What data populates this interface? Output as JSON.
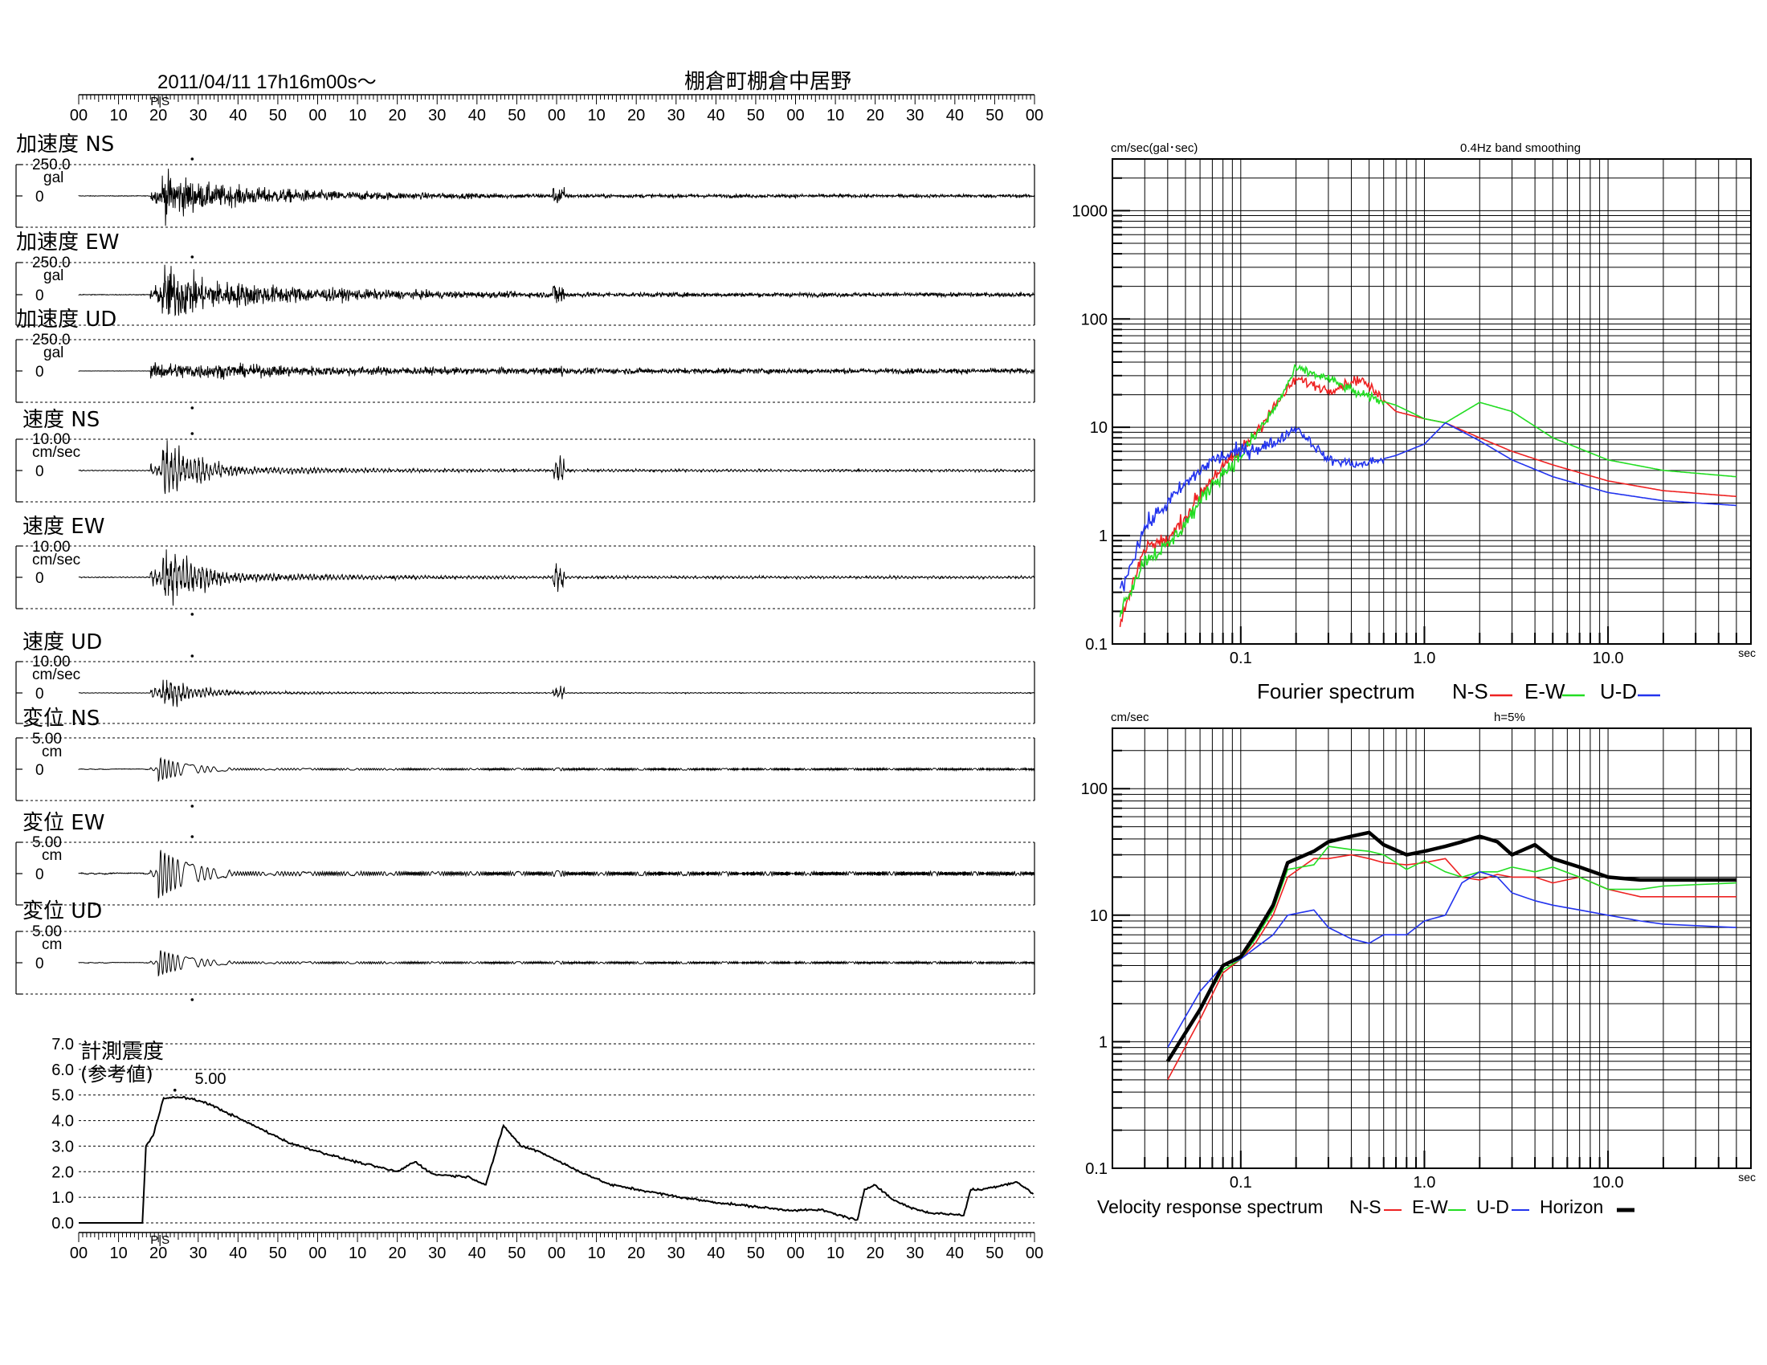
{
  "header": {
    "datetime": "2011/04/11  17h16m00s～",
    "station": "棚倉町棚倉中居野",
    "time_labels": [
      "00",
      "10",
      "20",
      "30",
      "40",
      "50",
      "00",
      "10",
      "20",
      "30",
      "40",
      "50",
      "00",
      "10",
      "20",
      "30",
      "40",
      "50",
      "00",
      "10",
      "20",
      "30",
      "40",
      "50",
      "00"
    ],
    "ps_marker": "P|S",
    "ps_color": "#2222cc"
  },
  "waveforms": [
    {
      "label": "加速度 NS",
      "scale": "250.0",
      "unit": "gal",
      "zero": "0"
    },
    {
      "label": "加速度 EW",
      "scale": "250.0",
      "unit": "gal",
      "zero": "0"
    },
    {
      "label": "加速度 UD",
      "scale": "250.0",
      "unit": "gal",
      "zero": "0"
    },
    {
      "label": "速度 NS",
      "scale": "10.00",
      "unit": "cm/sec",
      "zero": "0"
    },
    {
      "label": "速度 EW",
      "scale": "10.00",
      "unit": "cm/sec",
      "zero": "0"
    },
    {
      "label": "速度 UD",
      "scale": "10.00",
      "unit": "cm/sec",
      "zero": "0"
    },
    {
      "label": "変位 NS",
      "scale": "5.00",
      "unit": "cm",
      "zero": "0"
    },
    {
      "label": "変位 EW",
      "scale": "5.00",
      "unit": "cm",
      "zero": "0"
    },
    {
      "label": "変位 UD",
      "scale": "5.00",
      "unit": "cm",
      "zero": "0"
    }
  ],
  "intensity": {
    "title_line1": "計測震度",
    "title_line2": "(参考値)",
    "peak_label": "5.00",
    "y_ticks": [
      "7.0",
      "6.0",
      "5.0",
      "4.0",
      "3.0",
      "2.0",
      "1.0",
      "0.0"
    ]
  },
  "fourier": {
    "unit_label": "cm/sec(gal･sec)",
    "smoothing_label": "0.4Hz band smoothing",
    "y_ticks": [
      "1000",
      "100",
      "10",
      "1",
      "0.1"
    ],
    "x_ticks": [
      "0.1",
      "1.0",
      "10.0"
    ],
    "x_unit": "sec",
    "legend_title": "Fourier spectrum",
    "legend": [
      {
        "name": "N-S",
        "color": "#ee2222"
      },
      {
        "name": "E-W",
        "color": "#22dd22"
      },
      {
        "name": "U-D",
        "color": "#2233ee"
      }
    ]
  },
  "response": {
    "unit_label": "cm/sec",
    "damping_label": "h=5%",
    "y_ticks": [
      "100",
      "10",
      "1",
      "0.1"
    ],
    "x_ticks": [
      "0.1",
      "1.0",
      "10.0"
    ],
    "x_unit": "sec",
    "legend_title": "Velocity response spectrum",
    "legend": [
      {
        "name": "N-S",
        "color": "#ee2222"
      },
      {
        "name": "E-W",
        "color": "#22dd22"
      },
      {
        "name": "U-D",
        "color": "#2233ee"
      },
      {
        "name": "Horizon",
        "color": "#000000"
      }
    ]
  },
  "chart_data": [
    {
      "type": "line",
      "title": "計測震度 (参考値)",
      "x_unit": "seconds after 17h16m00s",
      "ylim": [
        0,
        7
      ],
      "x": [
        0,
        18,
        19,
        21,
        24,
        30,
        36,
        45,
        60,
        75,
        90,
        95,
        100,
        110,
        115,
        120,
        125,
        130,
        140,
        150,
        170,
        180,
        200,
        210,
        220,
        222,
        225,
        230,
        235,
        240,
        250,
        252,
        255,
        265,
        270
      ],
      "values": [
        0.0,
        0.0,
        3.0,
        3.4,
        4.9,
        4.9,
        4.7,
        4.1,
        3.1,
        2.5,
        2.0,
        2.4,
        1.9,
        1.8,
        1.5,
        3.8,
        3.0,
        2.8,
        2.1,
        1.5,
        1.0,
        0.8,
        0.5,
        0.5,
        0.1,
        1.3,
        1.5,
        0.9,
        0.6,
        0.4,
        0.3,
        1.3,
        1.3,
        1.6,
        1.1
      ],
      "peak": 5.0
    },
    {
      "type": "line",
      "title": "Fourier spectrum",
      "x_unit": "sec",
      "log_x": true,
      "log_y": true,
      "xlim": [
        0.02,
        50
      ],
      "ylim": [
        0.1,
        2000
      ],
      "x": [
        0.022,
        0.03,
        0.04,
        0.05,
        0.07,
        0.1,
        0.15,
        0.2,
        0.3,
        0.45,
        0.7,
        1.0,
        1.3,
        2.0,
        3.0,
        5.0,
        10.0,
        20.0,
        50.0
      ],
      "series": [
        {
          "name": "N-S",
          "values": [
            0.15,
            0.8,
            0.9,
            1.5,
            3.5,
            6.0,
            15,
            28,
            22,
            28,
            14,
            12,
            11,
            8,
            6,
            4.5,
            3.2,
            2.6,
            2.3
          ]
        },
        {
          "name": "E-W",
          "values": [
            0.2,
            0.6,
            0.8,
            1.3,
            3.0,
            5.5,
            14,
            35,
            28,
            20,
            16,
            12,
            11,
            17,
            14,
            8,
            5,
            4,
            3.5
          ]
        },
        {
          "name": "U-D",
          "values": [
            0.3,
            1.2,
            2.0,
            3.0,
            5.0,
            6.0,
            7.0,
            10,
            5,
            4.5,
            5.5,
            7,
            11,
            7.5,
            5,
            3.5,
            2.5,
            2.1,
            1.9
          ]
        }
      ]
    },
    {
      "type": "line",
      "title": "Velocity response spectrum",
      "x_unit": "sec",
      "log_x": true,
      "log_y": true,
      "xlim": [
        0.02,
        50
      ],
      "ylim": [
        0.1,
        250
      ],
      "x": [
        0.04,
        0.06,
        0.08,
        0.1,
        0.12,
        0.15,
        0.18,
        0.25,
        0.3,
        0.4,
        0.5,
        0.6,
        0.8,
        1.0,
        1.3,
        1.6,
        2.0,
        2.5,
        3.0,
        4.0,
        5.0,
        7.0,
        10.0,
        15.0,
        20.0,
        50.0
      ],
      "series": [
        {
          "name": "N-S",
          "values": [
            0.5,
            1.5,
            3.5,
            4.5,
            6,
            10,
            20,
            28,
            28,
            30,
            28,
            26,
            25,
            26,
            28,
            20,
            19,
            21,
            20,
            20,
            18,
            20,
            16,
            14,
            14,
            14
          ]
        },
        {
          "name": "E-W",
          "values": [
            0.7,
            1.8,
            3.7,
            4.5,
            6.5,
            11,
            23,
            25,
            35,
            33,
            32,
            30,
            23,
            27,
            22,
            20,
            22,
            22,
            24,
            22,
            24,
            20,
            16,
            16,
            17,
            18
          ]
        },
        {
          "name": "U-D",
          "values": [
            0.9,
            2.5,
            4.0,
            4.5,
            5.5,
            7,
            10,
            11,
            8,
            6.5,
            6,
            7,
            7,
            9,
            10,
            18,
            22,
            20,
            15,
            13,
            12,
            11,
            10,
            9,
            8.5,
            8
          ]
        },
        {
          "name": "Horizon",
          "values": [
            0.7,
            1.8,
            4.0,
            4.7,
            7,
            12,
            26,
            32,
            38,
            42,
            45,
            36,
            30,
            32,
            35,
            38,
            42,
            38,
            30,
            36,
            28,
            24,
            20,
            19,
            19,
            19
          ]
        }
      ]
    }
  ]
}
